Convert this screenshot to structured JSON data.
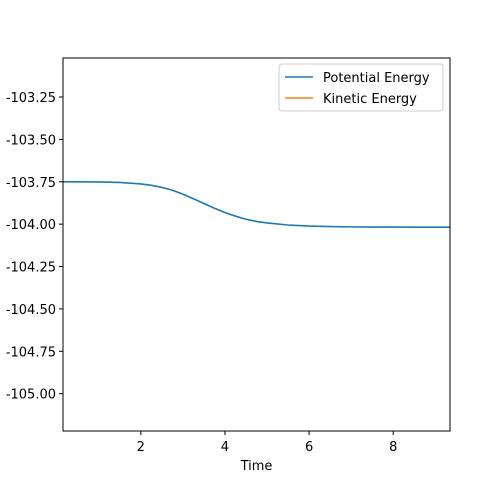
{
  "chart_data": {
    "type": "line",
    "xlabel": "Time",
    "ylabel": "",
    "xlim": [
      0.15,
      9.35
    ],
    "ylim": [
      -105.22,
      -103.02
    ],
    "xticks": [
      2,
      4,
      6,
      8
    ],
    "yticks": [
      -103.25,
      -103.5,
      -103.75,
      -104.0,
      -104.25,
      -104.5,
      -104.75,
      -105.0
    ],
    "ytick_labels": [
      "-103.25",
      "-103.50",
      "-103.75",
      "-104.00",
      "-104.25",
      "-104.50",
      "-104.75",
      "-105.00"
    ],
    "legend_position": "top-right",
    "grid": false,
    "series": [
      {
        "name": "Potential Energy",
        "color": "#1f77b4",
        "x": [
          0.15,
          0.5,
          1.0,
          1.5,
          2.0,
          2.25,
          2.5,
          2.75,
          3.0,
          3.25,
          3.5,
          3.75,
          4.0,
          4.25,
          4.5,
          4.75,
          5.0,
          5.5,
          6.0,
          6.5,
          7.0,
          7.5,
          8.0,
          8.5,
          9.0,
          9.35
        ],
        "y": [
          -103.75,
          -103.75,
          -103.751,
          -103.754,
          -103.763,
          -103.771,
          -103.783,
          -103.8,
          -103.823,
          -103.85,
          -103.878,
          -103.906,
          -103.931,
          -103.953,
          -103.971,
          -103.984,
          -103.993,
          -104.005,
          -104.011,
          -104.014,
          -104.016,
          -104.017,
          -104.017,
          -104.018,
          -104.018,
          -104.018
        ]
      },
      {
        "name": "Kinetic Energy",
        "color": "#ff7f0e",
        "x": [],
        "y": []
      }
    ]
  }
}
